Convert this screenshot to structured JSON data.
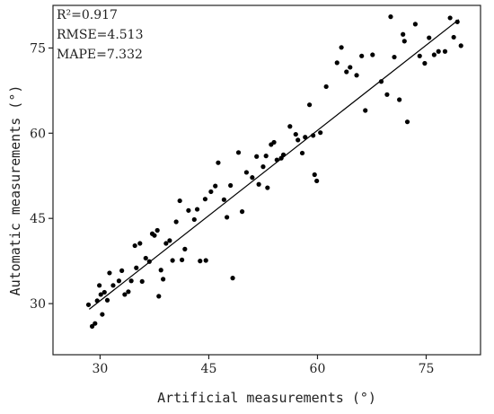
{
  "chart_data": {
    "type": "scatter",
    "title": "",
    "xlabel": "Artificial measurements (°)",
    "ylabel": "Automatic measurements (°)",
    "xlim": [
      23.5,
      82.5
    ],
    "ylim": [
      21,
      82.5
    ],
    "xticks": [
      30,
      45,
      60,
      75
    ],
    "yticks": [
      30,
      45,
      60,
      75
    ],
    "grid": false,
    "marker_color": "#000000",
    "line_color": "#000000",
    "annotations": [
      "R²=0.917",
      "RMSE=4.513",
      "MAPE=7.332"
    ],
    "fit_line": {
      "x": [
        28.5,
        79.5
      ],
      "y": [
        29.0,
        80.0
      ]
    },
    "points": [
      [
        28.4,
        29.8
      ],
      [
        28.9,
        26.0
      ],
      [
        29.3,
        26.5
      ],
      [
        29.6,
        30.5
      ],
      [
        29.9,
        33.2
      ],
      [
        30.1,
        31.6
      ],
      [
        30.3,
        28.1
      ],
      [
        30.6,
        32.0
      ],
      [
        31.0,
        30.6
      ],
      [
        31.3,
        35.4
      ],
      [
        31.8,
        33.2
      ],
      [
        32.6,
        34.0
      ],
      [
        33.0,
        35.8
      ],
      [
        33.4,
        31.6
      ],
      [
        33.9,
        32.1
      ],
      [
        34.3,
        34.0
      ],
      [
        34.8,
        40.2
      ],
      [
        35.0,
        36.3
      ],
      [
        35.5,
        40.6
      ],
      [
        35.8,
        33.9
      ],
      [
        36.3,
        38.0
      ],
      [
        36.8,
        37.4
      ],
      [
        37.2,
        42.3
      ],
      [
        37.5,
        42.0
      ],
      [
        37.9,
        42.9
      ],
      [
        38.1,
        31.3
      ],
      [
        38.4,
        35.9
      ],
      [
        38.7,
        34.3
      ],
      [
        39.1,
        40.6
      ],
      [
        39.6,
        41.1
      ],
      [
        40.0,
        37.6
      ],
      [
        40.5,
        44.4
      ],
      [
        41.0,
        48.1
      ],
      [
        41.3,
        37.7
      ],
      [
        41.7,
        39.6
      ],
      [
        42.2,
        46.4
      ],
      [
        43.0,
        44.8
      ],
      [
        43.4,
        46.6
      ],
      [
        43.8,
        37.5
      ],
      [
        44.6,
        37.6
      ],
      [
        44.5,
        48.4
      ],
      [
        45.3,
        49.7
      ],
      [
        45.9,
        50.7
      ],
      [
        46.3,
        54.8
      ],
      [
        47.1,
        48.3
      ],
      [
        47.5,
        45.2
      ],
      [
        48.0,
        50.8
      ],
      [
        48.3,
        34.5
      ],
      [
        49.1,
        56.6
      ],
      [
        49.6,
        46.2
      ],
      [
        50.2,
        53.1
      ],
      [
        51.0,
        52.2
      ],
      [
        51.6,
        55.9
      ],
      [
        51.9,
        51.0
      ],
      [
        52.5,
        54.1
      ],
      [
        52.9,
        56.0
      ],
      [
        53.1,
        50.4
      ],
      [
        53.6,
        58.0
      ],
      [
        54.0,
        58.4
      ],
      [
        54.4,
        55.3
      ],
      [
        55.0,
        55.6
      ],
      [
        55.3,
        56.2
      ],
      [
        56.2,
        61.2
      ],
      [
        57.0,
        59.8
      ],
      [
        57.3,
        58.8
      ],
      [
        57.9,
        56.5
      ],
      [
        58.3,
        59.3
      ],
      [
        58.9,
        65.0
      ],
      [
        59.4,
        59.6
      ],
      [
        59.6,
        52.7
      ],
      [
        59.9,
        51.6
      ],
      [
        60.4,
        60.1
      ],
      [
        61.2,
        68.2
      ],
      [
        62.7,
        72.4
      ],
      [
        63.3,
        75.1
      ],
      [
        64.0,
        70.8
      ],
      [
        64.5,
        71.6
      ],
      [
        65.4,
        70.2
      ],
      [
        66.1,
        73.6
      ],
      [
        66.6,
        64.0
      ],
      [
        67.6,
        73.8
      ],
      [
        68.8,
        69.1
      ],
      [
        69.6,
        66.8
      ],
      [
        70.1,
        80.5
      ],
      [
        70.6,
        73.4
      ],
      [
        71.3,
        65.9
      ],
      [
        71.8,
        77.4
      ],
      [
        72.4,
        62.0
      ],
      [
        72.0,
        76.2
      ],
      [
        73.5,
        79.2
      ],
      [
        74.1,
        73.6
      ],
      [
        74.8,
        72.3
      ],
      [
        75.4,
        76.8
      ],
      [
        76.1,
        73.8
      ],
      [
        76.7,
        74.4
      ],
      [
        77.6,
        74.4
      ],
      [
        78.3,
        80.3
      ],
      [
        78.8,
        76.9
      ],
      [
        79.3,
        79.6
      ],
      [
        79.8,
        75.4
      ]
    ]
  }
}
